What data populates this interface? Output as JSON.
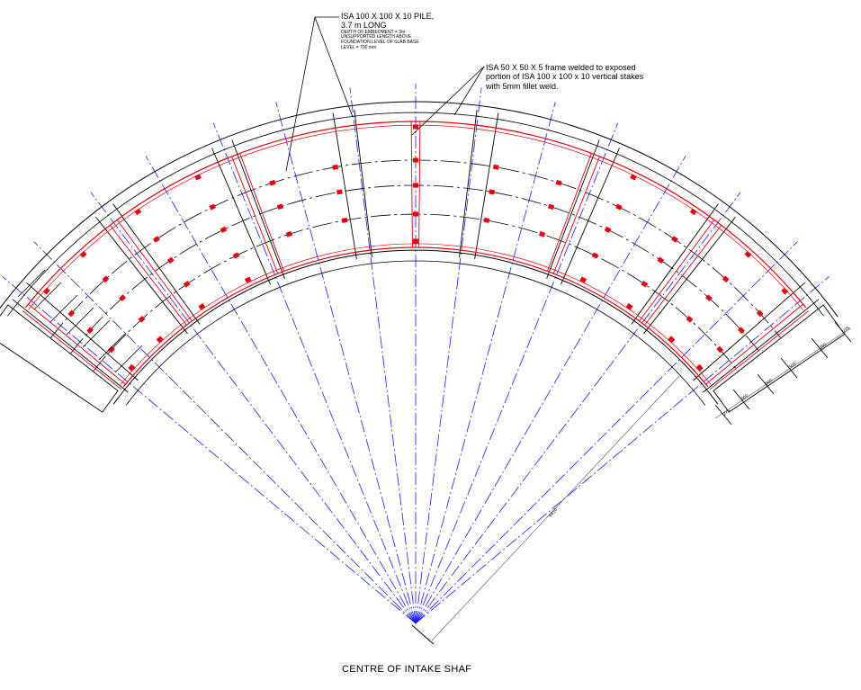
{
  "pile_note": {
    "title": "ISA 100 X 100 X 10 PILE,",
    "length": "3.7 m LONG",
    "details": [
      "DEPTH OF EMBEDMENT = 3m",
      "UNSUPPORTED LENGTH ABOVE",
      "FOUNDATION LEVEL OF SLAB BASE",
      "LEVEL = 700 mm"
    ]
  },
  "frame_note": {
    "lines": [
      "ISA  50 X 50 X 5 frame welded to exposed",
      "portion of ISA 100 x 100 x 10 vertical stakes",
      "with 5mm fillet weld."
    ]
  },
  "dimensions": {
    "radial": [
      "275",
      "500",
      "500",
      "500",
      "250",
      "275"
    ],
    "radius": "6410"
  },
  "caption": "CENTRE  OF  INTAKE SHAF",
  "colors": {
    "outline": "#000000",
    "centerline": "#1a1aff",
    "frame": "#e8000b"
  }
}
